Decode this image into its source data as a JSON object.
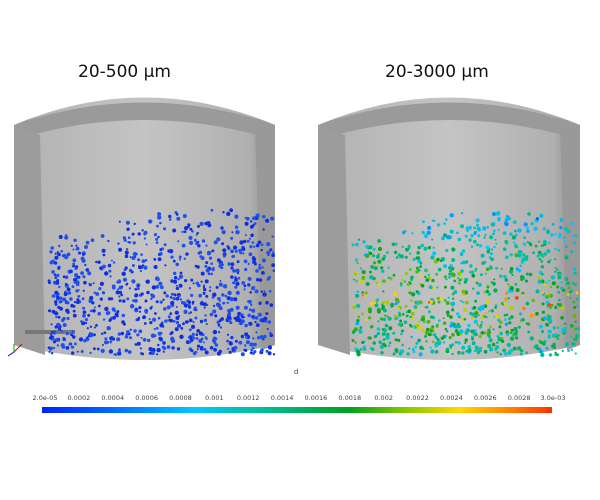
{
  "panels": [
    {
      "title": "20-500 μm",
      "particle_colors": "blue"
    },
    {
      "title": "20-3000 μm",
      "particle_colors": "full-range"
    }
  ],
  "colorbar": {
    "variable": "d",
    "min": 2e-05,
    "max": 0.003,
    "colormap": "jet",
    "ticks": [
      "2.0e-05",
      "0.0002",
      "0.0004",
      "0.0006",
      "0.0008",
      "0.001",
      "0.0012",
      "0.0014",
      "0.0016",
      "0.0018",
      "0.002",
      "0.0022",
      "0.0024",
      "0.0026",
      "0.0028",
      "3.0e-03"
    ]
  },
  "colors": {
    "tank": "#a9a9a9",
    "tank_inner": "#c2c2c2"
  }
}
